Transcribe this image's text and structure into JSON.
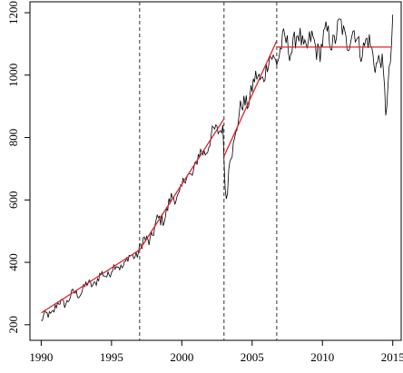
{
  "chart_data": {
    "type": "line",
    "title": "",
    "xlabel": "",
    "ylabel": "",
    "xlim": [
      1989.2,
      2015.6
    ],
    "ylim": [
      150,
      1235
    ],
    "x_ticks": [
      1990,
      1995,
      2000,
      2005,
      2010,
      2015
    ],
    "x_tick_labels": [
      "1990",
      "1995",
      "2000",
      "2005",
      "2010",
      "2015"
    ],
    "y_ticks": [
      200,
      400,
      600,
      800,
      1000,
      1200
    ],
    "y_tick_labels": [
      "200",
      "400",
      "600",
      "800",
      "1000",
      "1200"
    ],
    "grid": false,
    "legend": "none",
    "breakpoints": [
      1997.0,
      2003.0,
      2006.75
    ],
    "series": [
      {
        "role": "monthly observations",
        "color": "#000000",
        "anchors": [
          [
            1990.0,
            210
          ],
          [
            1991.0,
            255
          ],
          [
            1992.0,
            285
          ],
          [
            1993.0,
            315
          ],
          [
            1994.0,
            345
          ],
          [
            1995.0,
            375
          ],
          [
            1996.0,
            400
          ],
          [
            1997.0,
            440
          ],
          [
            1998.0,
            500
          ],
          [
            1999.0,
            575
          ],
          [
            2000.0,
            640
          ],
          [
            2001.0,
            715
          ],
          [
            2002.0,
            790
          ],
          [
            2002.9,
            850
          ],
          [
            2003.05,
            680
          ],
          [
            2003.2,
            550
          ],
          [
            2003.35,
            720
          ],
          [
            2004.0,
            860
          ],
          [
            2005.0,
            960
          ],
          [
            2006.0,
            1020
          ],
          [
            2006.75,
            1070
          ],
          [
            2007.5,
            1100
          ],
          [
            2008.5,
            1110
          ],
          [
            2009.5,
            1090
          ],
          [
            2010.5,
            1120
          ],
          [
            2011.3,
            1140
          ],
          [
            2012.5,
            1110
          ],
          [
            2013.5,
            1080
          ],
          [
            2014.2,
            1030
          ],
          [
            2014.5,
            890
          ],
          [
            2015.0,
            1160
          ]
        ]
      },
      {
        "role": "fitted segmented trend",
        "color": "#e0202a",
        "segments": [
          [
            [
              1990.0,
              238
            ],
            [
              1997.0,
              440
            ]
          ],
          [
            [
              1997.0,
              440
            ],
            [
              2003.0,
              860
            ]
          ],
          [
            [
              2003.0,
              740
            ],
            [
              2006.75,
              1110
            ]
          ],
          [
            [
              2006.75,
              1090
            ],
            [
              2014.9,
              1090
            ]
          ]
        ]
      }
    ]
  }
}
